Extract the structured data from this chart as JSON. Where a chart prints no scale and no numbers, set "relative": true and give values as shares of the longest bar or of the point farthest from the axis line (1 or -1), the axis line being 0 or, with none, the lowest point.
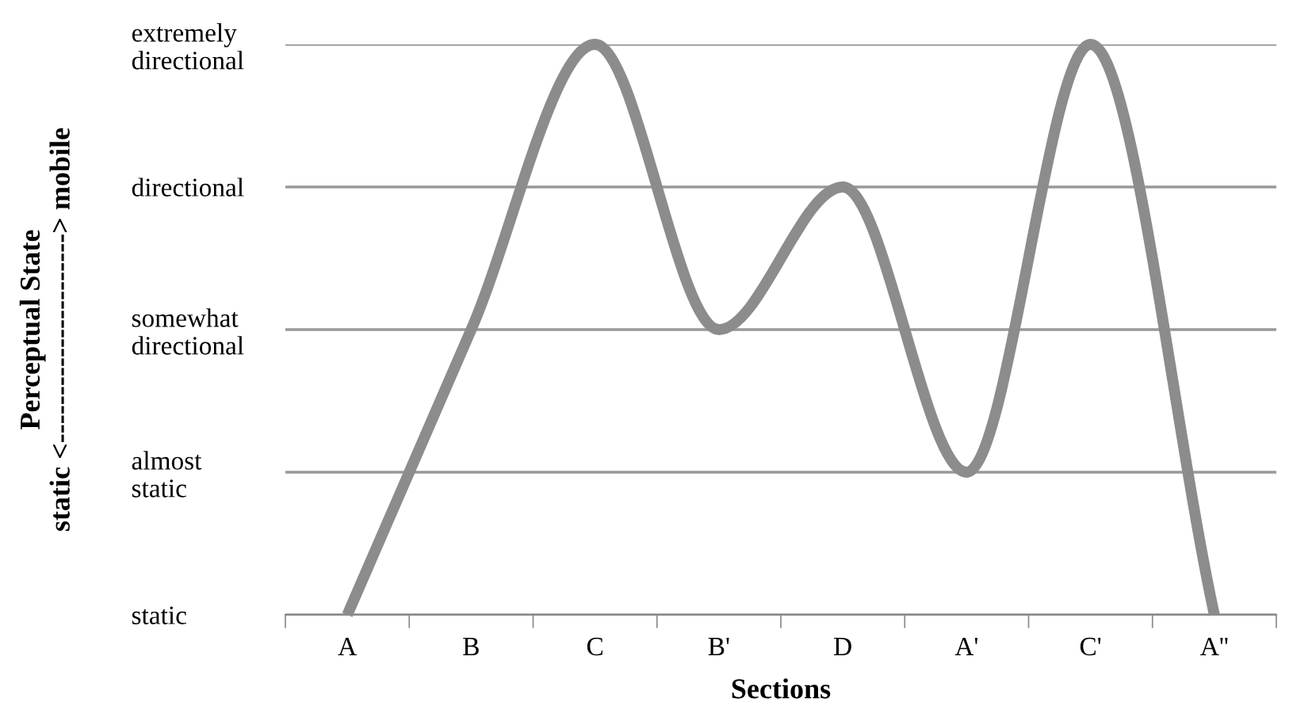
{
  "chart_data": {
    "type": "line",
    "xlabel": "Sections",
    "annotations": [
      "Perceptual State\nstatic <----------------------> mobile"
    ],
    "categories": [
      "A",
      "B",
      "C",
      "B'",
      "D",
      "A'",
      "C'",
      "A''"
    ],
    "y_categories": [
      "extremely\ndirectional",
      "directional",
      "somewhat\ndirectional",
      "almost\nstatic",
      "static"
    ],
    "relative": true,
    "series": [
      {
        "color": "#8c8c8c",
        "values": [
          0,
          0.5,
          1,
          0.5,
          0.75,
          0.25,
          1,
          0
        ]
      }
    ],
    "grid": "y",
    "legend": false,
    "marker": "none",
    "line_style": "solid"
  }
}
